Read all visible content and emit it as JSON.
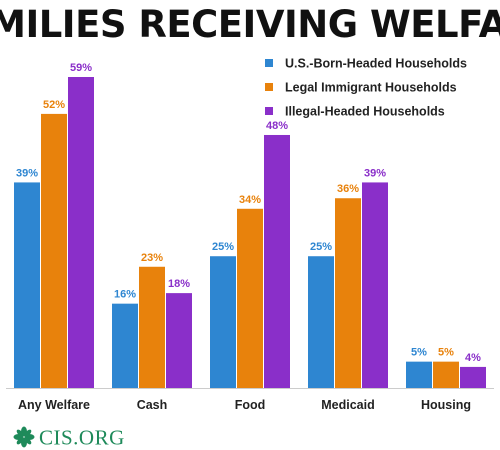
{
  "title": "FAMILIES RECEIVING WELFARE",
  "logo": {
    "text": "CIS.ORG",
    "icon": "cis-leaf-logo-icon",
    "color": "#1e8a5a"
  },
  "chart_data": {
    "type": "bar",
    "title": "FAMILIES RECEIVING WELFARE",
    "xlabel": "",
    "ylabel": "",
    "categories": [
      "Any Welfare",
      "Cash",
      "Food",
      "Medicaid",
      "Housing"
    ],
    "series": [
      {
        "name": "U.S.-Born-Headed Households",
        "color": "#2e86d1",
        "values": [
          39,
          16,
          25,
          25,
          5
        ]
      },
      {
        "name": "Legal Immigrant Households",
        "color": "#e8820c",
        "values": [
          52,
          23,
          34,
          36,
          5
        ]
      },
      {
        "name": "Illegal-Headed Households",
        "color": "#8a2fc9",
        "values": [
          59,
          18,
          48,
          39,
          4
        ]
      }
    ],
    "value_suffix": "%",
    "ylim": [
      0,
      62
    ],
    "grid": false,
    "legend": "top-right",
    "data_labels": true
  }
}
